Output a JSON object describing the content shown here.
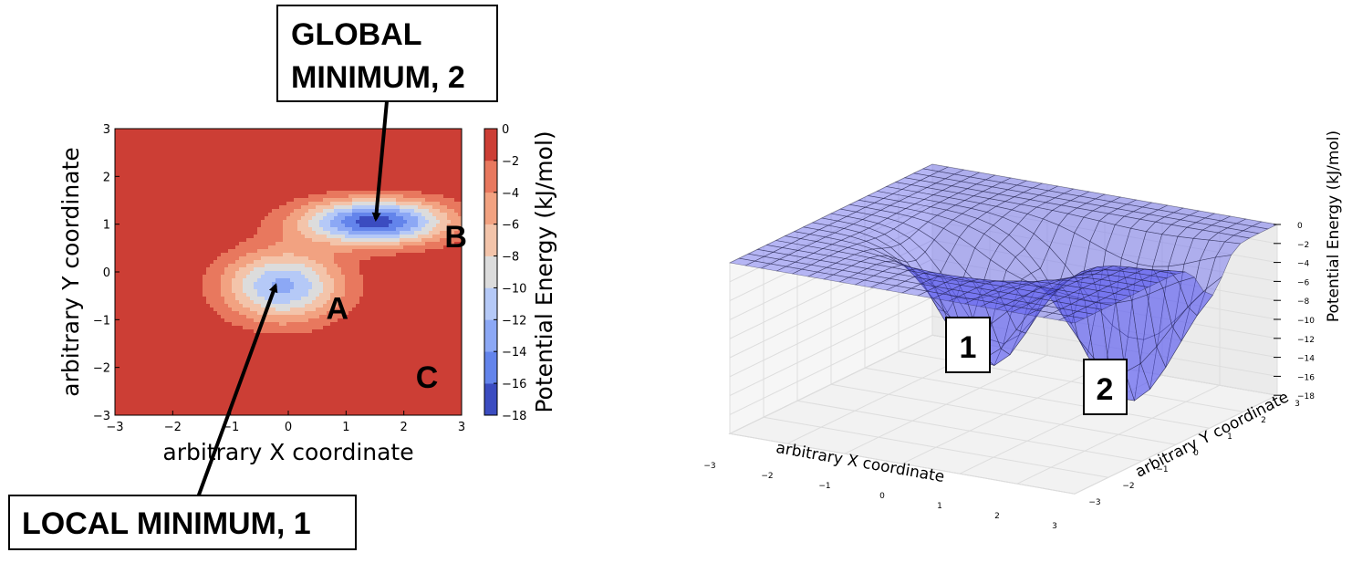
{
  "annotations": {
    "global_min_line1": "GLOBAL",
    "global_min_line2": "MINIMUM, 2",
    "local_min": "LOCAL MINIMUM, 1",
    "point_a": "A",
    "point_b": "B",
    "point_c": "C",
    "surface_min_1": "1",
    "surface_min_2": "2"
  },
  "colors": {
    "contour_levels": [
      "#3b4cc0",
      "#6384eb",
      "#8ca8f5",
      "#b5c9f7",
      "#dcdcdc",
      "#f3c4aa",
      "#f2a281",
      "#e8785e",
      "#cc3e35"
    ],
    "surface_fill": "#5b5bf0",
    "surface_edge": "#1a1a3a"
  },
  "chart_data": [
    {
      "type": "heatmap",
      "subtype": "filled-contour",
      "xlabel": "arbitrary X coordinate",
      "ylabel": "arbitrary Y coordinate",
      "xlim": [
        -3,
        3
      ],
      "ylim": [
        -3,
        3
      ],
      "xticks": [
        "−3",
        "−2",
        "−1",
        "0",
        "1",
        "2",
        "3"
      ],
      "yticks": [
        "−3",
        "−2",
        "−1",
        "0",
        "1",
        "2",
        "3"
      ],
      "colorbar_label": "Potential Energy (kJ/mol)",
      "colorbar_ticks": [
        "−18",
        "−16",
        "−14",
        "−12",
        "−10",
        "−8",
        "−6",
        "−4",
        "−2",
        "0"
      ],
      "levels": [
        -18,
        -16,
        -14,
        -12,
        -10,
        -8,
        -6,
        -4,
        -2,
        0
      ],
      "wells": [
        {
          "name": "A",
          "x": -0.1,
          "y": -0.3,
          "depth": -12.5
        },
        {
          "name": "B",
          "x": 1.5,
          "y": 1.05,
          "depth": -17
        }
      ],
      "region_labels": [
        {
          "text": "A",
          "x": 0.85,
          "y": -0.75
        },
        {
          "text": "B",
          "x": 2.9,
          "y": 0.75
        },
        {
          "text": "C",
          "x": 2.4,
          "y": -2.2
        }
      ]
    },
    {
      "type": "surface",
      "xlabel": "arbitrary X coordinate",
      "ylabel": "arbitrary Y coordinate",
      "zlabel": "Potential Energy (kJ/mol)",
      "xlim": [
        -3,
        3
      ],
      "ylim": [
        -3,
        3
      ],
      "zlim": [
        -18,
        0
      ],
      "xticks": [
        "−3",
        "−2",
        "−1",
        "0",
        "1",
        "2",
        "3"
      ],
      "yticks": [
        "−3",
        "−2",
        "−1",
        "0",
        "1",
        "2",
        "3"
      ],
      "zticks": [
        "0",
        "−2",
        "−4",
        "−6",
        "−8",
        "−10",
        "−12",
        "−14",
        "−16",
        "−18"
      ],
      "minima": [
        {
          "label": "1",
          "x": -0.1,
          "y": -0.3,
          "z": -16
        },
        {
          "label": "2",
          "x": 1.5,
          "y": 1.05,
          "z": -18
        }
      ]
    }
  ]
}
